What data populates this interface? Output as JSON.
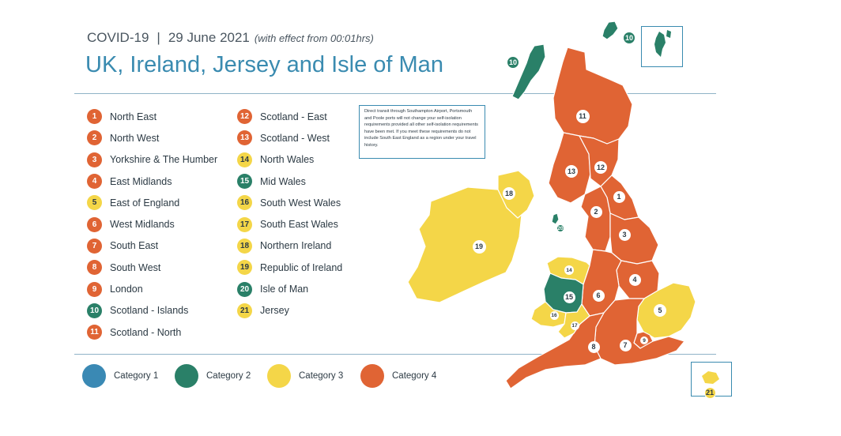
{
  "header": {
    "label": "COVID-19",
    "separator": "|",
    "date": "29 June 2021",
    "note": "(with effect from 00:01hrs)",
    "title": "UK, Ireland, Jersey and Isle of Man"
  },
  "colors": {
    "category_1": "#3a89b4",
    "category_2": "#2a8068",
    "category_3": "#f4d648",
    "category_4": "#e06434"
  },
  "regions": [
    {
      "num": "1",
      "name": "North East",
      "category": 4
    },
    {
      "num": "2",
      "name": "North West",
      "category": 4
    },
    {
      "num": "3",
      "name": "Yorkshire & The Humber",
      "category": 4
    },
    {
      "num": "4",
      "name": "East Midlands",
      "category": 4
    },
    {
      "num": "5",
      "name": "East of England",
      "category": 3
    },
    {
      "num": "6",
      "name": "West Midlands",
      "category": 4
    },
    {
      "num": "7",
      "name": "South East",
      "category": 4
    },
    {
      "num": "8",
      "name": "South West",
      "category": 4
    },
    {
      "num": "9",
      "name": "London",
      "category": 4
    },
    {
      "num": "10",
      "name": "Scotland - Islands",
      "category": 2
    },
    {
      "num": "11",
      "name": "Scotland - North",
      "category": 4
    },
    {
      "num": "12",
      "name": "Scotland - East",
      "category": 4
    },
    {
      "num": "13",
      "name": "Scotland - West",
      "category": 4
    },
    {
      "num": "14",
      "name": "North Wales",
      "category": 3
    },
    {
      "num": "15",
      "name": "Mid Wales",
      "category": 2
    },
    {
      "num": "16",
      "name": "South West Wales",
      "category": 3
    },
    {
      "num": "17",
      "name": "South East Wales",
      "category": 3
    },
    {
      "num": "18",
      "name": "Northern Ireland",
      "category": 3
    },
    {
      "num": "19",
      "name": "Republic of Ireland",
      "category": 3
    },
    {
      "num": "20",
      "name": "Isle of Man",
      "category": 2
    },
    {
      "num": "21",
      "name": "Jersey",
      "category": 3
    }
  ],
  "transit_note": "Direct transit through Southampton Airport, Portsmouth and Poole ports will not change your self-isolation requirements provided all other self-isolation requirements have been met. If you meet these requirements do not include South East England as a region under your travel history.",
  "categories": [
    {
      "label": "Category 1",
      "category": 1
    },
    {
      "label": "Category 2",
      "category": 2
    },
    {
      "label": "Category 3",
      "category": 3
    },
    {
      "label": "Category 4",
      "category": 4
    }
  ]
}
